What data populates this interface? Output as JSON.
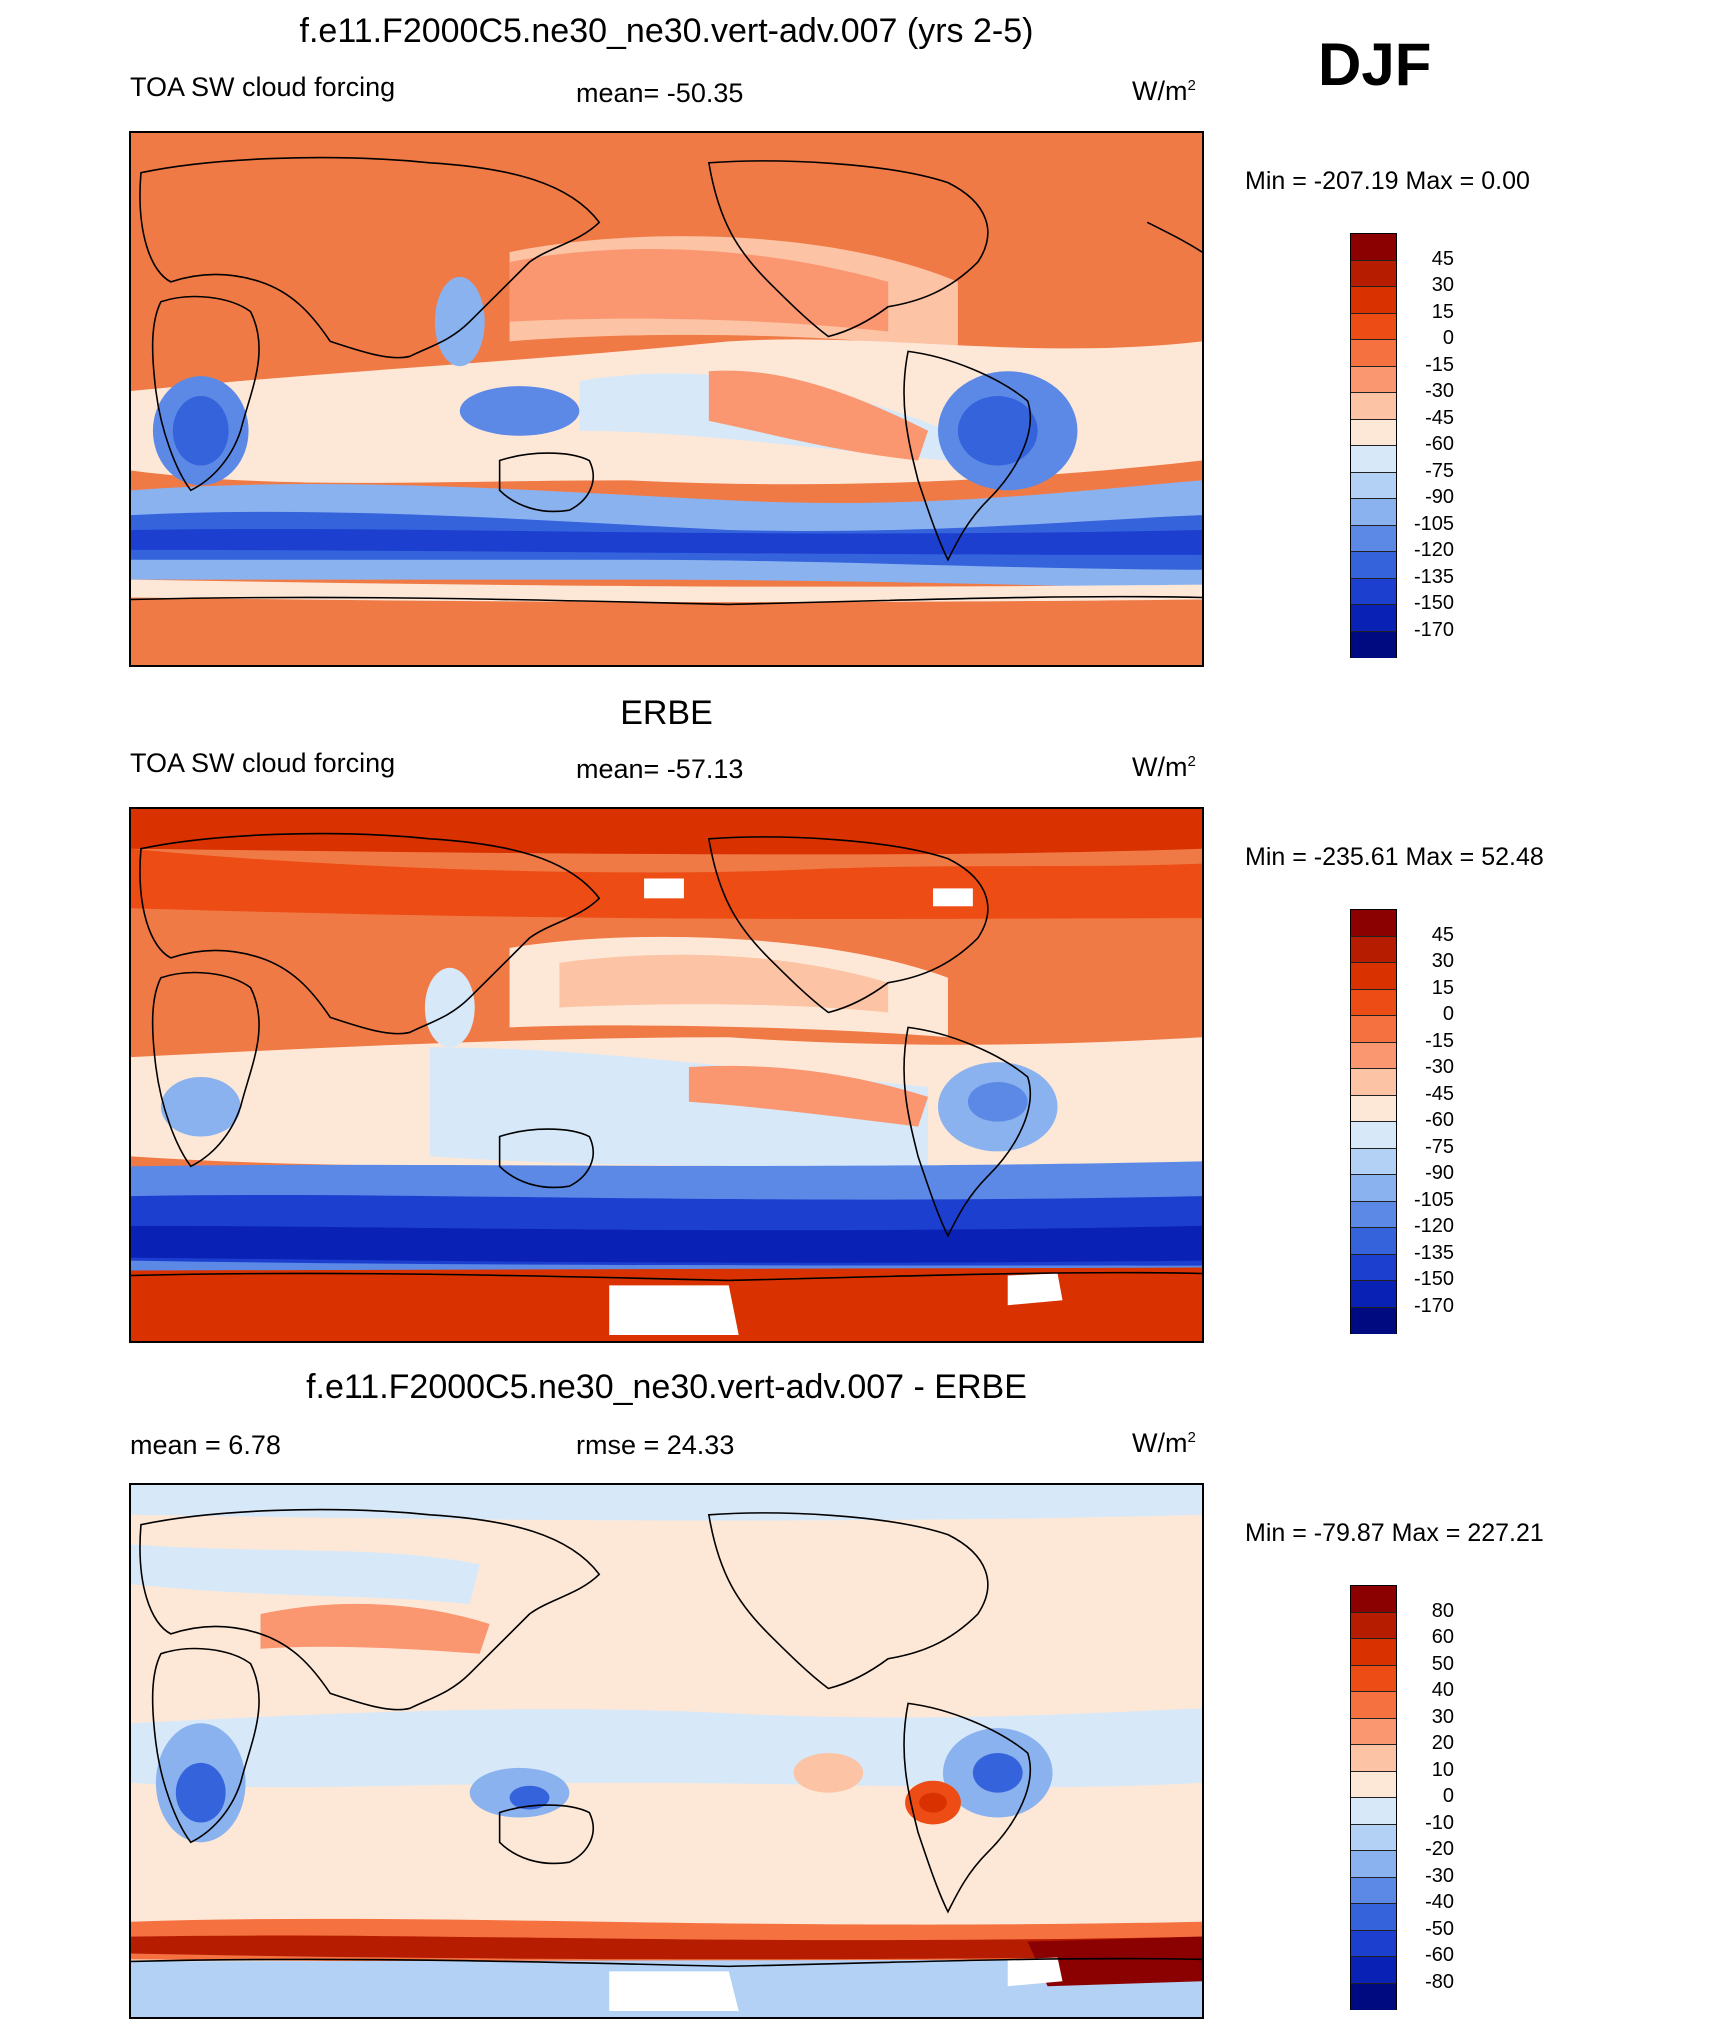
{
  "season": "DJF",
  "units_prefix": "W/m",
  "units_sup": "2",
  "panels": [
    {
      "title": "f.e11.F2000C5.ne30_ne30.vert-adv.007 (yrs 2-5)",
      "left_label": "TOA SW cloud forcing",
      "center_label": "mean= -50.35",
      "minmax": "Min = -207.19 Max =    0.00",
      "levels": [
        "45",
        "30",
        "15",
        "0",
        "-15",
        "-30",
        "-45",
        "-60",
        "-75",
        "-90",
        "-105",
        "-120",
        "-135",
        "-150",
        "-170"
      ]
    },
    {
      "title": "ERBE",
      "left_label": "TOA SW cloud forcing",
      "center_label": "mean= -57.13",
      "minmax": "Min = -235.61 Max =  52.48",
      "levels": [
        "45",
        "30",
        "15",
        "0",
        "-15",
        "-30",
        "-45",
        "-60",
        "-75",
        "-90",
        "-105",
        "-120",
        "-135",
        "-150",
        "-170"
      ]
    },
    {
      "title": "f.e11.F2000C5.ne30_ne30.vert-adv.007 - ERBE",
      "left_label": "mean =   6.78",
      "center_label": "rmse =  24.33",
      "minmax": "Min = -79.87 Max = 227.21",
      "levels": [
        "80",
        "60",
        "50",
        "40",
        "30",
        "20",
        "10",
        "0",
        "-10",
        "-20",
        "-30",
        "-40",
        "-50",
        "-60",
        "-80"
      ]
    }
  ],
  "colorbar_colors": [
    "#8b0000",
    "#b51c00",
    "#d93100",
    "#ed4c14",
    "#f57140",
    "#fa9670",
    "#fcc3a4",
    "#fde8d7",
    "#d7e8f8",
    "#b3d0f5",
    "#8ab2ef",
    "#5c89e6",
    "#3563dc",
    "#1c3fd0",
    "#0a21b5",
    "#000a80"
  ]
}
